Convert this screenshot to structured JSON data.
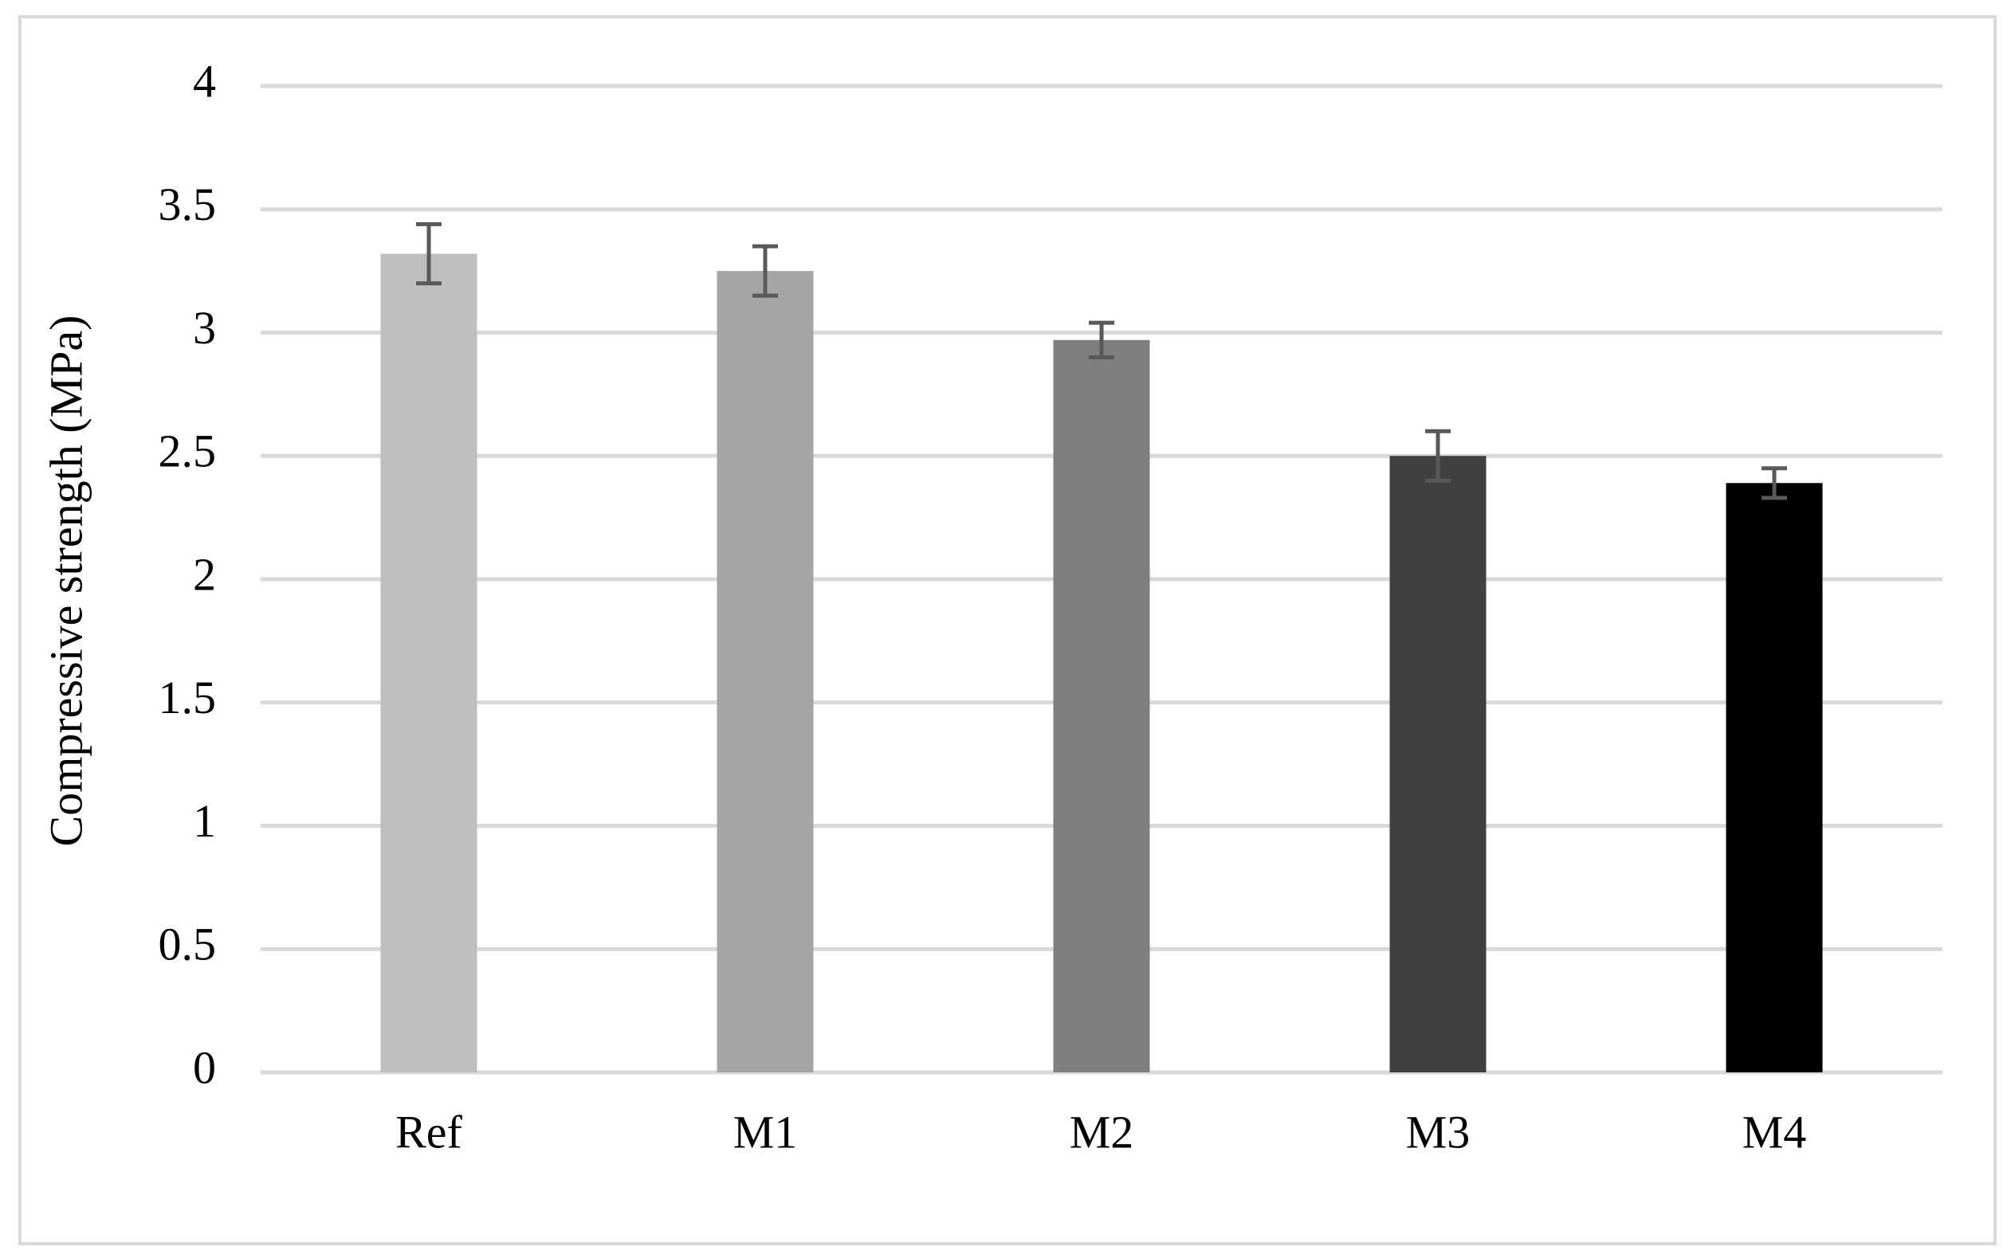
{
  "chart_data": {
    "type": "bar",
    "y_label": "Compressive strength (MPa)",
    "categories": [
      "Ref",
      "M1",
      "M2",
      "M3",
      "M4"
    ],
    "values": [
      3.32,
      3.25,
      2.97,
      2.5,
      2.39
    ],
    "errors": [
      0.12,
      0.1,
      0.07,
      0.1,
      0.06
    ],
    "colors": [
      "#bfbfbf",
      "#a5a5a5",
      "#7f7f7f",
      "#404040",
      "#000000"
    ],
    "error_color": "#595959",
    "ylim": [
      0,
      4
    ],
    "yticks": [
      0,
      0.5,
      1,
      1.5,
      2,
      2.5,
      3,
      3.5,
      4
    ],
    "grid": true
  }
}
